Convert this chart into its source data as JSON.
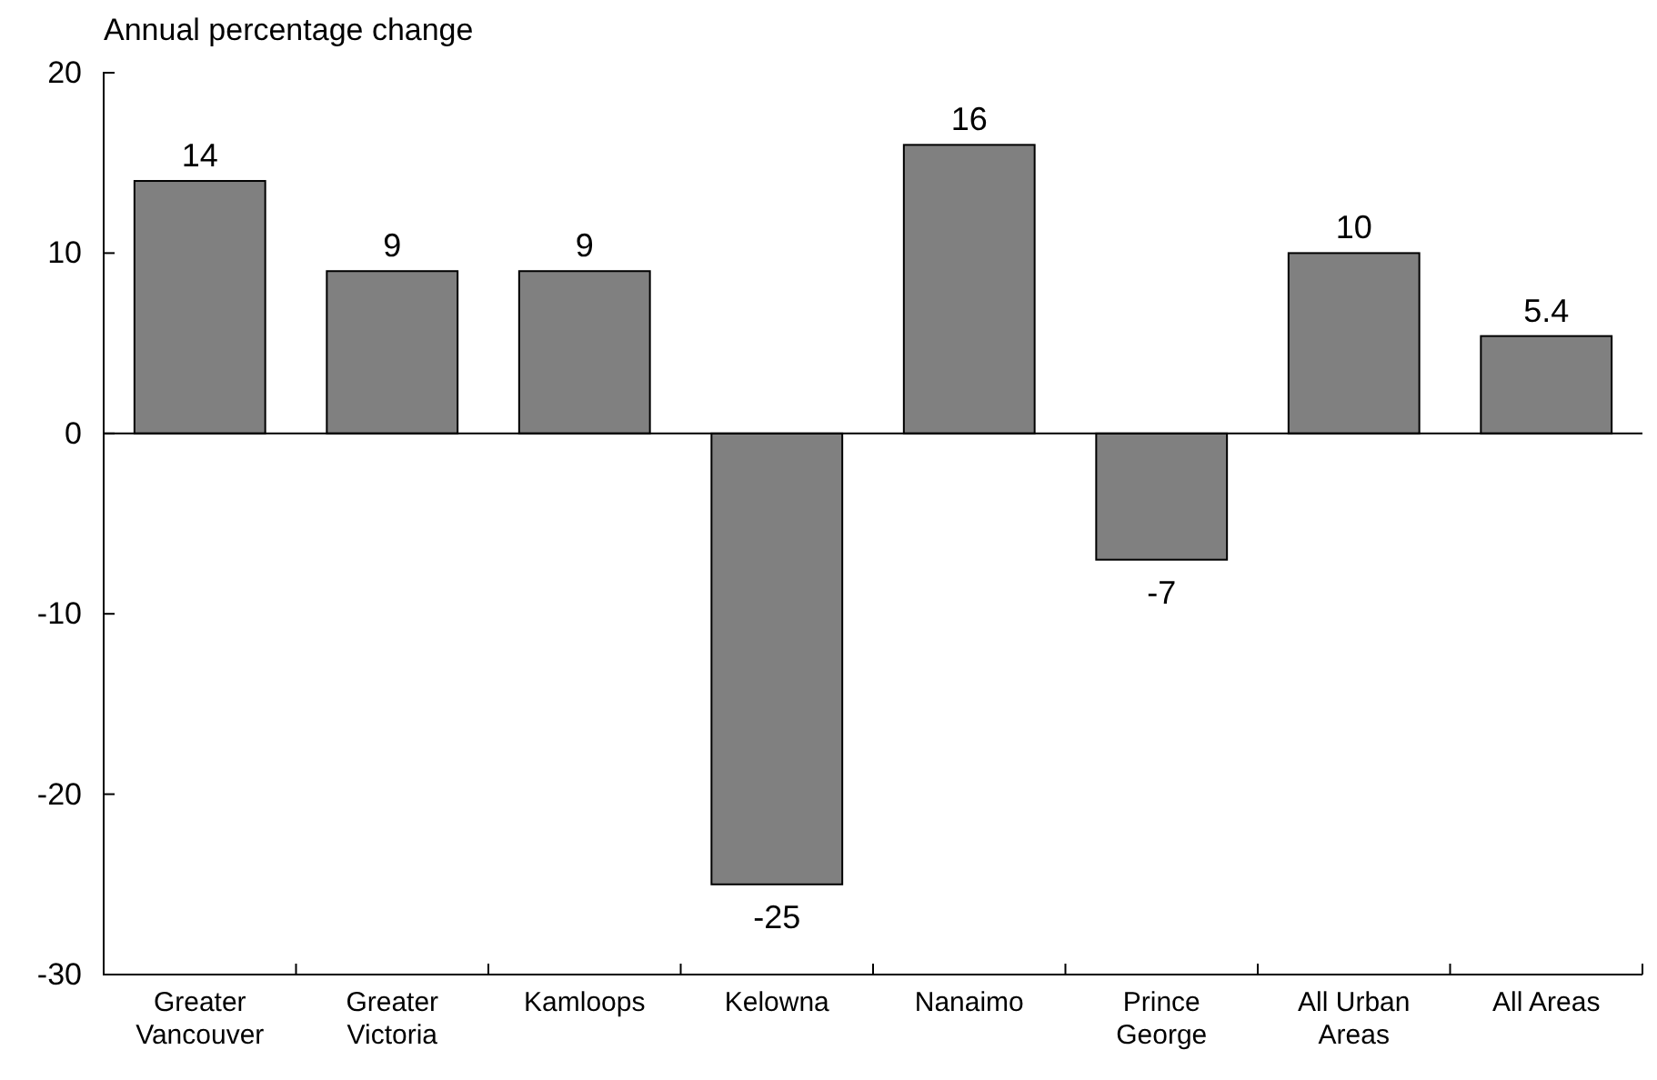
{
  "chart_data": {
    "type": "bar",
    "ylabel": "Annual percentage change",
    "categories": [
      "Greater Vancouver",
      "Greater Victoria",
      "Kamloops",
      "Kelowna",
      "Nanaimo",
      "Prince George",
      "All Urban Areas",
      "All Areas"
    ],
    "values": [
      14,
      9,
      9,
      -25,
      16,
      -7,
      10,
      5.4
    ],
    "color": "#808080",
    "ylim": [
      -30,
      20
    ],
    "yticks": [
      -30,
      -20,
      -10,
      0,
      10,
      20
    ],
    "data_labels": true
  }
}
